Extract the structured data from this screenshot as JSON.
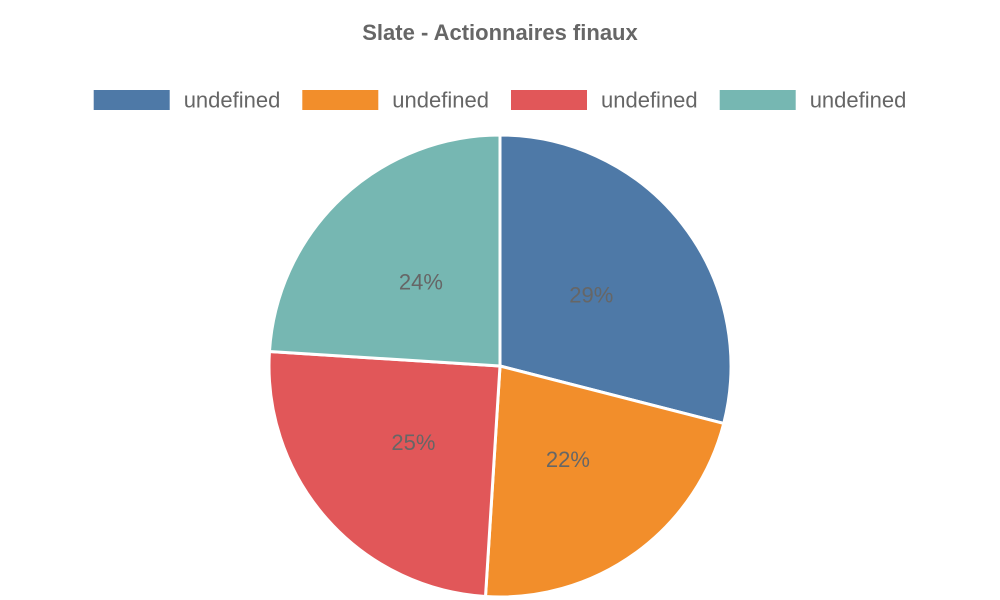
{
  "chart_data": {
    "type": "pie",
    "title": "Slate - Actionnaires finaux",
    "categories": [
      "undefined",
      "undefined",
      "undefined",
      "undefined"
    ],
    "values": [
      29,
      22,
      25,
      24
    ],
    "value_labels": [
      "29%",
      "22%",
      "25%",
      "24%"
    ],
    "colors": [
      "#4e79a7",
      "#f28e2b",
      "#e15759",
      "#76b7b2"
    ],
    "legend_position": "top"
  }
}
